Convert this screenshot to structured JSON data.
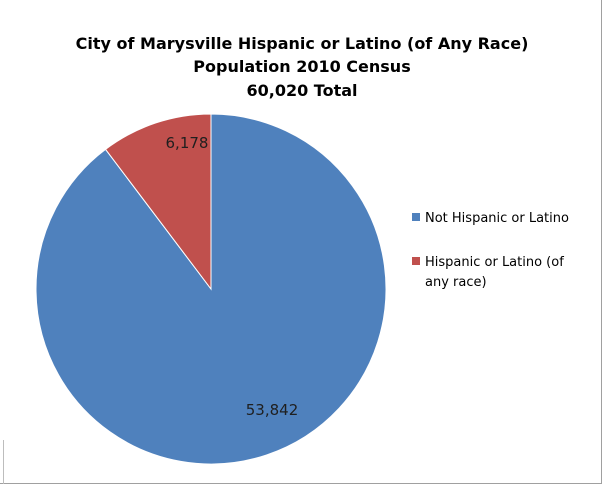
{
  "chart_data": {
    "type": "pie",
    "title_lines": [
      "City of Marysville Hispanic or Latino (of Any Race)",
      "Population 2010 Census",
      "60,020 Total"
    ],
    "categories": [
      "Not Hispanic or Latino",
      "Hispanic or Latino (of any race)"
    ],
    "legend_lines": [
      [
        "Not Hispanic or Latino"
      ],
      [
        "Hispanic or Latino (of",
        "any race)"
      ]
    ],
    "values": [
      53842,
      6178
    ],
    "data_labels": [
      "53,842",
      "6,178"
    ],
    "colors": [
      "#4f81bd",
      "#c0504d"
    ],
    "start_angle_deg": 0,
    "direction": "clockwise",
    "legend_position": "right"
  }
}
